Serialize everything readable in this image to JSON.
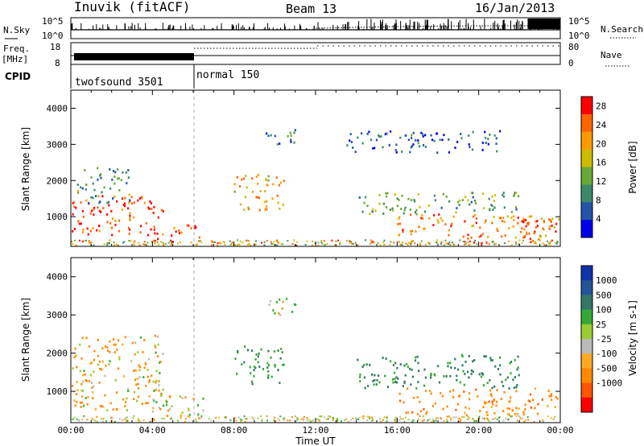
{
  "header": {
    "station": "Inuvik (fitACF)",
    "beam": "Beam 13",
    "date": "16/Jan/2013"
  },
  "summary_panels": {
    "nsky": {
      "left_label": "N.Sky",
      "right_label": "N.Search",
      "left_ticks": [
        "10^5",
        "10^0"
      ],
      "right_ticks": [
        "10^5",
        "10^0"
      ]
    },
    "freq": {
      "left_label": "Freq.",
      "unit_label": "[MHz]",
      "left_ticks": [
        "18",
        "8"
      ],
      "right_label": "Nave",
      "right_ticks": [
        "80",
        "0"
      ]
    },
    "cpid": {
      "label": "CPID",
      "modes": [
        {
          "name": "twofsound 3501",
          "start_hour": 0,
          "end_hour": 6
        },
        {
          "name": "normal 150",
          "start_hour": 6,
          "end_hour": 24
        }
      ]
    }
  },
  "colors": {
    "power_scale": [
      "#0000ee",
      "#2255aa",
      "#3a8a6a",
      "#66aa33",
      "#ccbb00",
      "#ff9900",
      "#ff6600",
      "#ff0000"
    ],
    "velocity_scale": [
      "#ff0000",
      "#ff5500",
      "#ff8800",
      "#ffaa22",
      "#bbbbbb",
      "#99cc33",
      "#33aa33",
      "#337766",
      "#225599",
      "#1133aa"
    ]
  },
  "chart_data": [
    {
      "type": "heatmap",
      "panel": "power",
      "ylabel": "Slant Range [km]",
      "ylim": [
        180,
        4500
      ],
      "yticks": [
        "1000",
        "2000",
        "3000",
        "4000"
      ],
      "xlim": [
        0,
        24
      ],
      "colorbar_label": "Power [dB]",
      "colorbar_ticks": [
        "4",
        "8",
        "12",
        "16",
        "20",
        "24",
        "28"
      ],
      "colorbar_range": [
        0,
        30
      ],
      "regions": [
        {
          "t0": 0.0,
          "t1": 4.5,
          "r0": 500,
          "r1": 1600,
          "level": 26
        },
        {
          "t0": 0.3,
          "t1": 3.0,
          "r0": 1400,
          "r1": 2400,
          "level": 10
        },
        {
          "t0": 4.0,
          "t1": 6.5,
          "r0": 250,
          "r1": 800,
          "level": 27
        },
        {
          "t0": 8.0,
          "t1": 10.5,
          "r0": 1200,
          "r1": 2200,
          "level": 20
        },
        {
          "t0": 9.5,
          "t1": 11.0,
          "r0": 3000,
          "r1": 3500,
          "level": 8
        },
        {
          "t0": 13.5,
          "t1": 21.0,
          "r0": 2800,
          "r1": 3400,
          "level": 6
        },
        {
          "t0": 14.0,
          "t1": 22.0,
          "r0": 1100,
          "r1": 1700,
          "level": 12
        },
        {
          "t0": 16.0,
          "t1": 24.0,
          "r0": 400,
          "r1": 1100,
          "level": 22
        },
        {
          "t0": 22.0,
          "t1": 24.0,
          "r0": 400,
          "r1": 1000,
          "level": 28
        }
      ]
    },
    {
      "type": "heatmap",
      "panel": "velocity",
      "ylabel": "Slant Range [km]",
      "xlabel": "Time UT",
      "ylim": [
        180,
        4500
      ],
      "yticks": [
        "1000",
        "2000",
        "3000",
        "4000"
      ],
      "xlim": [
        0,
        24
      ],
      "xticks": [
        "00:00",
        "04:00",
        "08:00",
        "12:00",
        "16:00",
        "20:00",
        "00:00"
      ],
      "colorbar_label": "Velocity [m s-1]",
      "colorbar_ticks": [
        "1000",
        "500",
        "100",
        "25",
        "-25",
        "-100",
        "-500",
        "-1000"
      ],
      "regions": [
        {
          "t0": 0.0,
          "t1": 4.5,
          "r0": 500,
          "r1": 2500,
          "velocity": -100
        },
        {
          "t0": 4.0,
          "t1": 6.5,
          "r0": 300,
          "r1": 900,
          "velocity": 0
        },
        {
          "t0": 8.0,
          "t1": 10.5,
          "r0": 1200,
          "r1": 2200,
          "velocity": 400
        },
        {
          "t0": 9.5,
          "t1": 11.0,
          "r0": 3000,
          "r1": 3500,
          "velocity": 100
        },
        {
          "t0": 14.0,
          "t1": 22.0,
          "r0": 1100,
          "r1": 2000,
          "velocity": 600
        },
        {
          "t0": 16.0,
          "t1": 24.0,
          "r0": 400,
          "r1": 1100,
          "velocity": -300
        }
      ]
    }
  ]
}
